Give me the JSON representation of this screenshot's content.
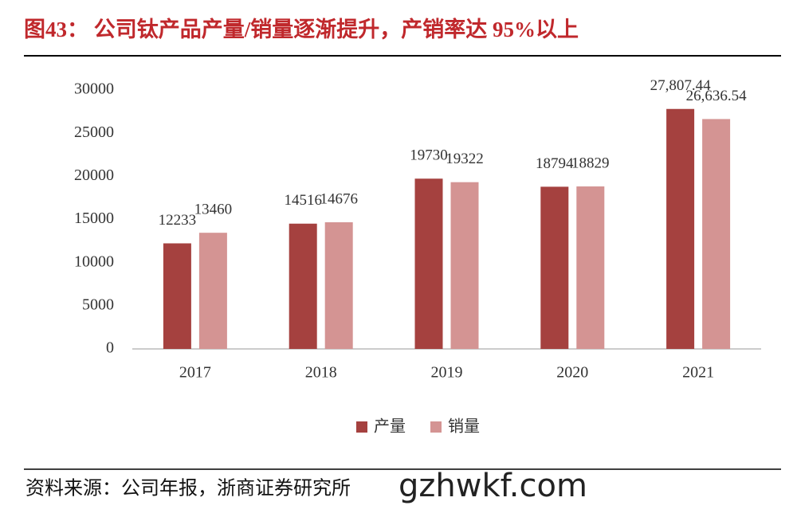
{
  "chart_data": {
    "type": "bar",
    "title": "图43： 公司钛产品产量/销量逐渐提升，产销率达 95%以上",
    "source": "资料来源：公司年报，浙商证券研究所",
    "watermark": "gzhwkf.com",
    "categories": [
      "2017",
      "2018",
      "2019",
      "2020",
      "2021"
    ],
    "series": [
      {
        "name": "产量",
        "color": "#a5413f",
        "values": [
          12233,
          14516,
          19730,
          18794,
          27807.44
        ],
        "value_labels": [
          "12233",
          "14516",
          "19730",
          "18794",
          "27,807.44"
        ]
      },
      {
        "name": "销量",
        "color": "#d49493",
        "values": [
          13460,
          14676,
          19322,
          18829,
          26636.54
        ],
        "value_labels": [
          "13460",
          "14676",
          "19322",
          "18829",
          "26,636.54"
        ]
      }
    ],
    "ylim": [
      0,
      30000
    ],
    "yticks": [
      0,
      5000,
      10000,
      15000,
      20000,
      25000,
      30000
    ],
    "grid": false
  }
}
